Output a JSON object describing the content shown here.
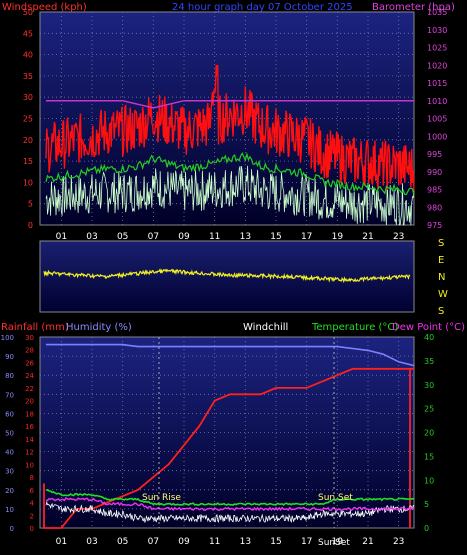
{
  "title": "24 hour graph day 07 October 2025",
  "top": {
    "left_label": "Windspeed (kph)",
    "right_label": "Barometer (hpa)",
    "left_ticks": [
      "0",
      "5",
      "10",
      "15",
      "20",
      "25",
      "30",
      "35",
      "40",
      "45",
      "50"
    ],
    "right_ticks": [
      "975",
      "980",
      "985",
      "990",
      "995",
      "1000",
      "1005",
      "1010",
      "1015",
      "1020",
      "1025",
      "1030",
      "1035"
    ],
    "x_ticks": [
      "01",
      "03",
      "05",
      "07",
      "09",
      "11",
      "13",
      "15",
      "17",
      "19",
      "21",
      "23"
    ]
  },
  "direction": {
    "labels": [
      "S",
      "E",
      "N",
      "W",
      "S"
    ]
  },
  "bottom": {
    "rain_label": "Rainfall (mm)",
    "humidity_label": "Humidity (%)",
    "windchill_label": "Windchill",
    "temp_label": "Temperature (°C)",
    "dew_label": "Dew Point (°C)",
    "humidity_ticks": [
      "0",
      "10",
      "20",
      "30",
      "40",
      "50",
      "60",
      "70",
      "80",
      "90",
      "100"
    ],
    "rain_ticks": [
      "0",
      "2",
      "4",
      "6",
      "8",
      "10",
      "12",
      "14",
      "16",
      "18",
      "20",
      "22",
      "24",
      "26",
      "28",
      "30"
    ],
    "temp_ticks": [
      "0",
      "5",
      "10",
      "15",
      "20",
      "25",
      "30",
      "35",
      "40"
    ],
    "x_ticks": [
      "01",
      "03",
      "05",
      "07",
      "09",
      "11",
      "13",
      "15",
      "17",
      "19",
      "21",
      "23"
    ],
    "sunrise_label": "Sun Rise",
    "sunset_label": "Sun Set",
    "sunset_axis_label": "SunSet"
  },
  "colors": {
    "plot_bg_top": "#1a1f7a",
    "plot_bg_bottom": "#000033",
    "windspeed": "#ff1010",
    "gust_avg": "#22cc22",
    "wind_min": "#ccffcc",
    "barometer": "#cc33cc",
    "direction": "#eeee22",
    "rainfall": "#ff2020",
    "humidity": "#8080ff",
    "temperature": "#22dd22",
    "dewpoint": "#ee33ee",
    "windchill": "#ffffff",
    "axis_left_top": "#ff3030",
    "axis_right_top": "#dd44dd",
    "axis_temp": "#22cc22",
    "axis_humidity": "#8888ff"
  },
  "chart_data": [
    {
      "type": "line",
      "name_ref": "windspeed-barometer",
      "x": [
        0,
        1,
        2,
        3,
        4,
        5,
        6,
        7,
        8,
        9,
        10,
        11,
        12,
        13,
        14,
        15,
        16,
        17,
        18,
        19,
        20,
        21,
        22,
        23,
        24
      ],
      "ylim": [
        0,
        50
      ],
      "y2lim": [
        975,
        1035
      ],
      "series": [
        {
          "name": "Windspeed (kph)",
          "axis": "left",
          "values": [
            18,
            19,
            20,
            21,
            22,
            22,
            23,
            26,
            24,
            22,
            23,
            24,
            26,
            27,
            23,
            22,
            21,
            20,
            17,
            16,
            15,
            15,
            14,
            14,
            13
          ]
        },
        {
          "name": "Barometer (hpa)",
          "axis": "right",
          "values": [
            1010,
            1010,
            1010,
            1010,
            1010,
            1010,
            1009,
            1008,
            1009,
            1010,
            1010,
            1010,
            1010,
            1010,
            1010,
            1010,
            1010,
            1010,
            1010,
            1010,
            1010,
            1010,
            1010,
            1010,
            1010
          ]
        }
      ]
    },
    {
      "type": "line",
      "name_ref": "wind-direction",
      "x": [
        0,
        4,
        8,
        12,
        16,
        20,
        24
      ],
      "values": [
        0.45,
        0.5,
        0.42,
        0.48,
        0.5,
        0.55,
        0.5
      ]
    },
    {
      "type": "line",
      "name_ref": "temp-humidity-rain",
      "x": [
        0,
        1,
        2,
        3,
        4,
        5,
        6,
        7,
        8,
        9,
        10,
        11,
        12,
        13,
        14,
        15,
        16,
        17,
        18,
        19,
        20,
        21,
        22,
        23,
        24
      ],
      "ylim": [
        0,
        100
      ],
      "y2lim": [
        0,
        40
      ],
      "series": [
        {
          "name": "Humidity (%)",
          "axis": "humidity",
          "values": [
            96,
            96,
            96,
            96,
            96,
            96,
            95,
            95,
            95,
            95,
            95,
            95,
            95,
            95,
            95,
            95,
            95,
            95,
            95,
            95,
            94,
            93,
            91,
            87,
            85
          ]
        },
        {
          "name": "Rainfall (mm)",
          "axis": "rain",
          "values": [
            0,
            0,
            3,
            3,
            4,
            5,
            6,
            8,
            10,
            13,
            16,
            20,
            21,
            21,
            21,
            22,
            22,
            22,
            23,
            24,
            25,
            25,
            25,
            25,
            25
          ]
        },
        {
          "name": "Temperature (°C)",
          "axis": "temp",
          "values": [
            8,
            7,
            7,
            7,
            6,
            6,
            6,
            5,
            5,
            5,
            5,
            5,
            5,
            5,
            5,
            5,
            5,
            5,
            5,
            6,
            6,
            6,
            6,
            6,
            6
          ]
        },
        {
          "name": "Dew Point (°C)",
          "axis": "temp",
          "values": [
            6,
            6,
            6,
            6,
            5,
            5,
            5,
            4,
            4,
            4,
            4,
            4,
            4,
            4,
            4,
            4,
            4,
            4,
            4,
            4,
            4,
            4,
            4,
            4,
            4
          ]
        },
        {
          "name": "Windchill",
          "axis": "temp",
          "values": [
            5,
            4,
            4,
            4,
            3,
            3,
            2,
            2,
            2,
            2,
            2,
            2,
            2,
            2,
            2,
            2,
            2,
            2,
            3,
            3,
            3,
            3,
            4,
            4,
            4
          ]
        }
      ]
    }
  ]
}
